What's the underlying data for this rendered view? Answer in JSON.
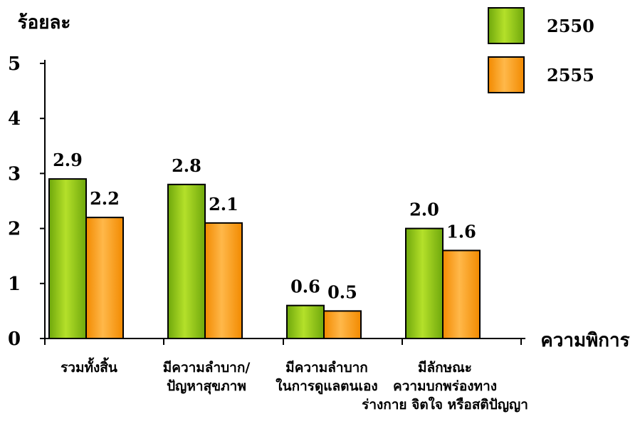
{
  "chart_data": {
    "type": "bar",
    "ylabel": "ร้อยละ",
    "xlabel": "ความพิการ",
    "ylim": [
      0,
      5
    ],
    "yticks": [
      0,
      1,
      2,
      3,
      4,
      5
    ],
    "grid": false,
    "legend_position": "top-right",
    "categories": [
      [
        "รวมทั้งสิ้น"
      ],
      [
        "มีความลำบาก/",
        "ปัญหาสุขภาพ"
      ],
      [
        "มีความลำบาก",
        "ในการดูแลตนเอง"
      ],
      [
        "มีลักษณะ",
        "ความบกพร่องทาง",
        "ร่างกาย จิตใจ หรือสติปัญญา"
      ]
    ],
    "series": [
      {
        "name": "2550",
        "values": [
          2.9,
          2.8,
          0.6,
          2.0
        ],
        "labels": [
          "2.9",
          "2.8",
          "0.6",
          "2.0"
        ],
        "color": "#8cc21a"
      },
      {
        "name": "2555",
        "values": [
          2.2,
          2.1,
          0.5,
          1.6
        ],
        "labels": [
          "2.2",
          "2.1",
          "0.5",
          "1.6"
        ],
        "color": "#ff9a0e"
      }
    ]
  }
}
